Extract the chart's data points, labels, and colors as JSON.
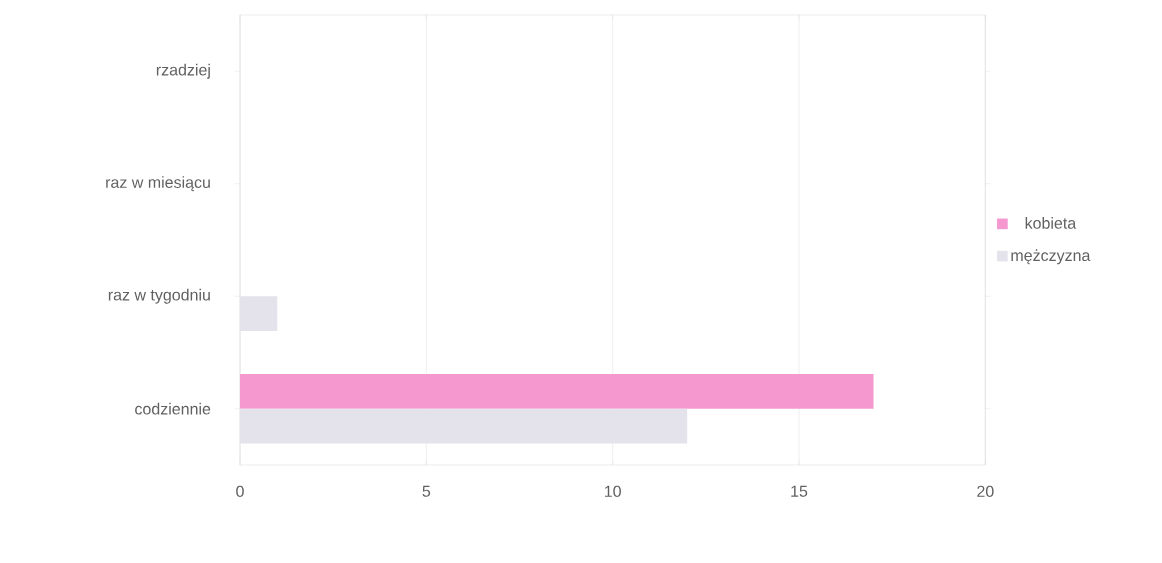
{
  "chart_data": {
    "type": "bar",
    "orientation": "horizontal",
    "categories": [
      "rzadziej",
      "raz w miesiącu",
      "raz w tygodniu",
      "codziennie"
    ],
    "series": [
      {
        "name": "kobieta",
        "color": "#f598cf",
        "values": [
          0,
          0,
          0,
          17
        ]
      },
      {
        "name": "mężczyzna",
        "color": "#e4e2ea",
        "values": [
          0,
          0,
          1,
          12
        ]
      }
    ],
    "xlim": [
      0,
      20
    ],
    "xticks": [
      0,
      5,
      10,
      15,
      20
    ],
    "grid": "x",
    "legend": "right"
  }
}
